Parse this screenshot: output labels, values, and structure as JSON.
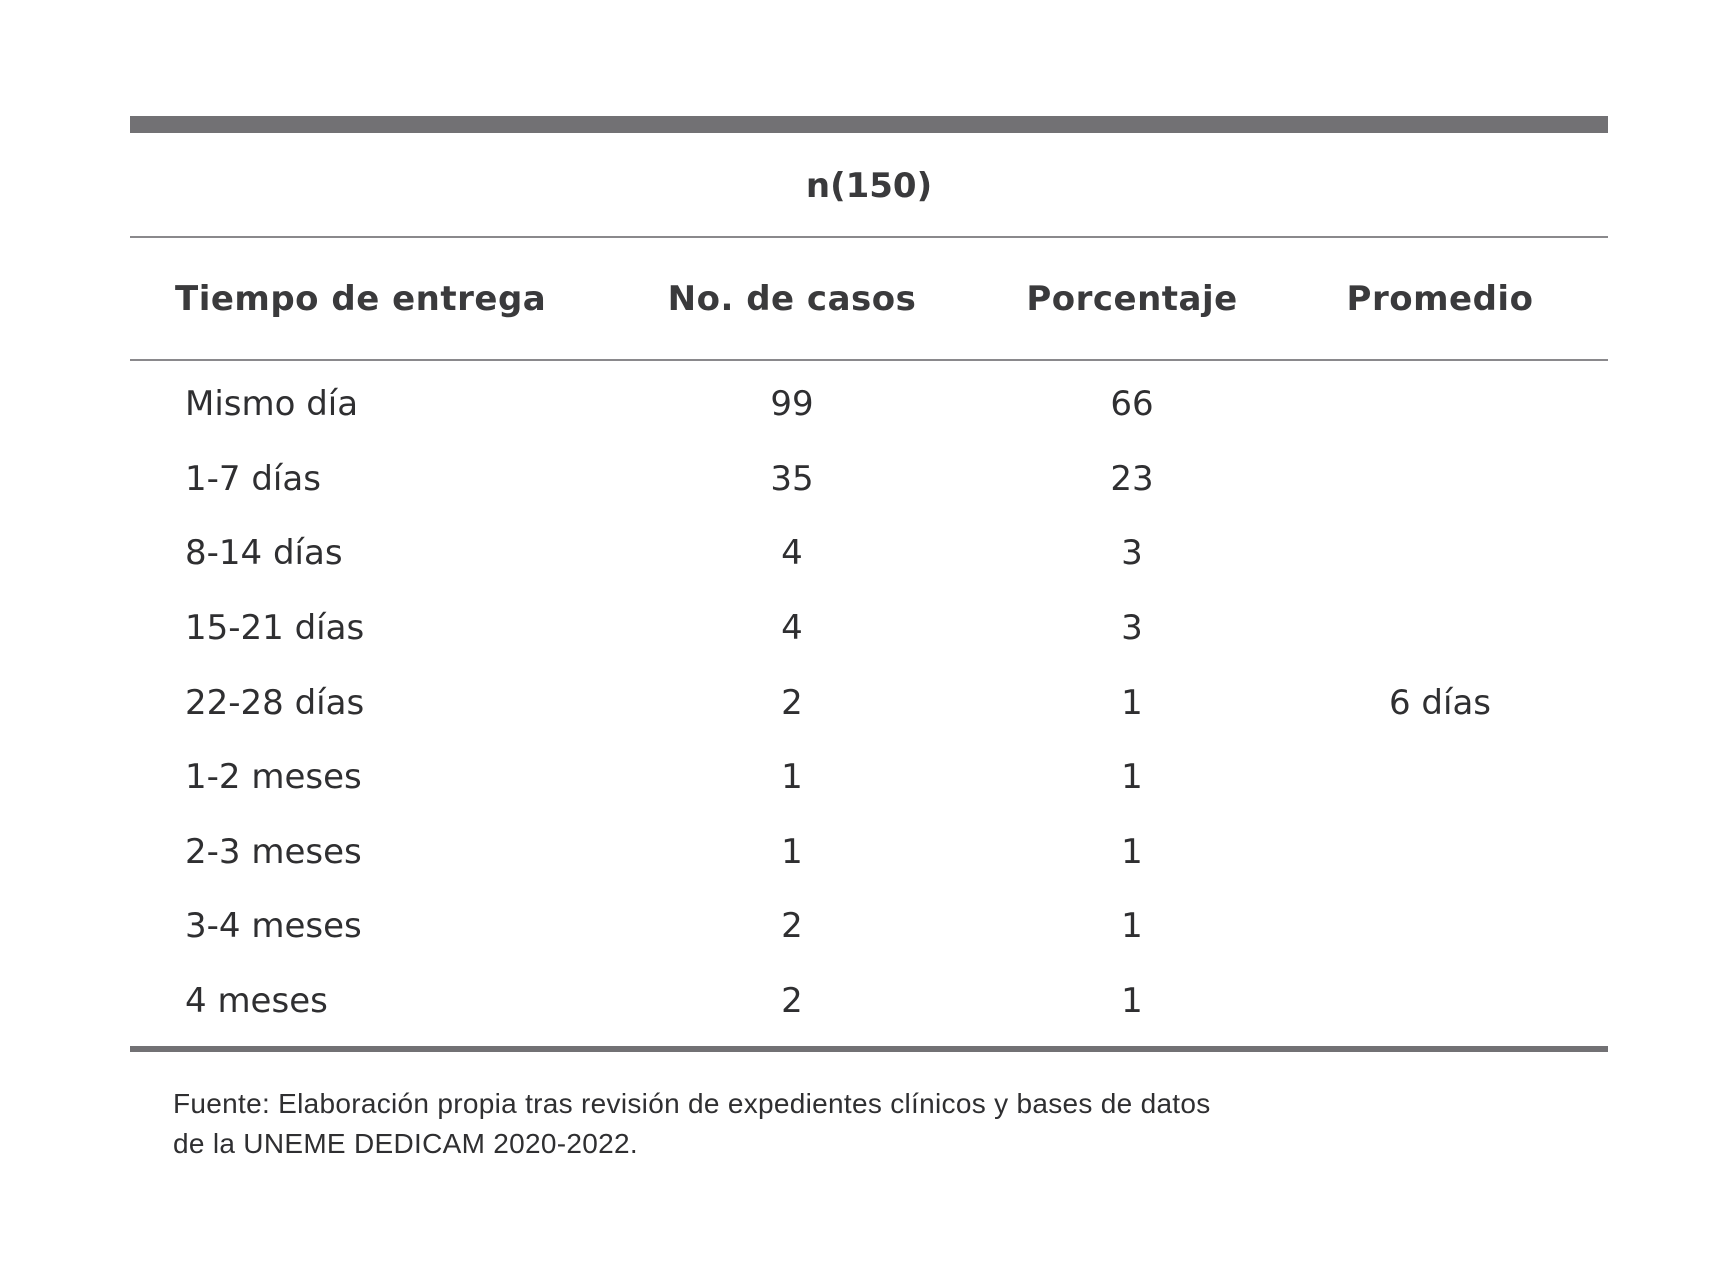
{
  "table": {
    "n_label": "n(150)",
    "headers": {
      "tiempo": "Tiempo de entrega",
      "casos": "No. de casos",
      "porcentaje": "Porcentaje",
      "promedio": "Promedio"
    },
    "rows": [
      {
        "tiempo": "Mismo día",
        "casos": "99",
        "porcentaje": "66",
        "promedio": ""
      },
      {
        "tiempo": "1-7 días",
        "casos": "35",
        "porcentaje": "23",
        "promedio": ""
      },
      {
        "tiempo": "8-14 días",
        "casos": "4",
        "porcentaje": "3",
        "promedio": ""
      },
      {
        "tiempo": "15-21 días",
        "casos": "4",
        "porcentaje": "3",
        "promedio": ""
      },
      {
        "tiempo": "22-28 días",
        "casos": "2",
        "porcentaje": "1",
        "promedio": "6 días"
      },
      {
        "tiempo": "1-2 meses",
        "casos": "1",
        "porcentaje": "1",
        "promedio": ""
      },
      {
        "tiempo": "2-3 meses",
        "casos": "1",
        "porcentaje": "1",
        "promedio": ""
      },
      {
        "tiempo": "3-4 meses",
        "casos": "2",
        "porcentaje": "1",
        "promedio": ""
      },
      {
        "tiempo": "4 meses",
        "casos": "2",
        "porcentaje": "1",
        "promedio": ""
      }
    ]
  },
  "source": {
    "line1": "Fuente: Elaboración propia tras revisión de expedientes clínicos y bases de datos",
    "line2": "de la UNEME DEDICAM 2020-2022."
  },
  "colors": {
    "rule": "#727174",
    "text": "#3a3a3c"
  }
}
